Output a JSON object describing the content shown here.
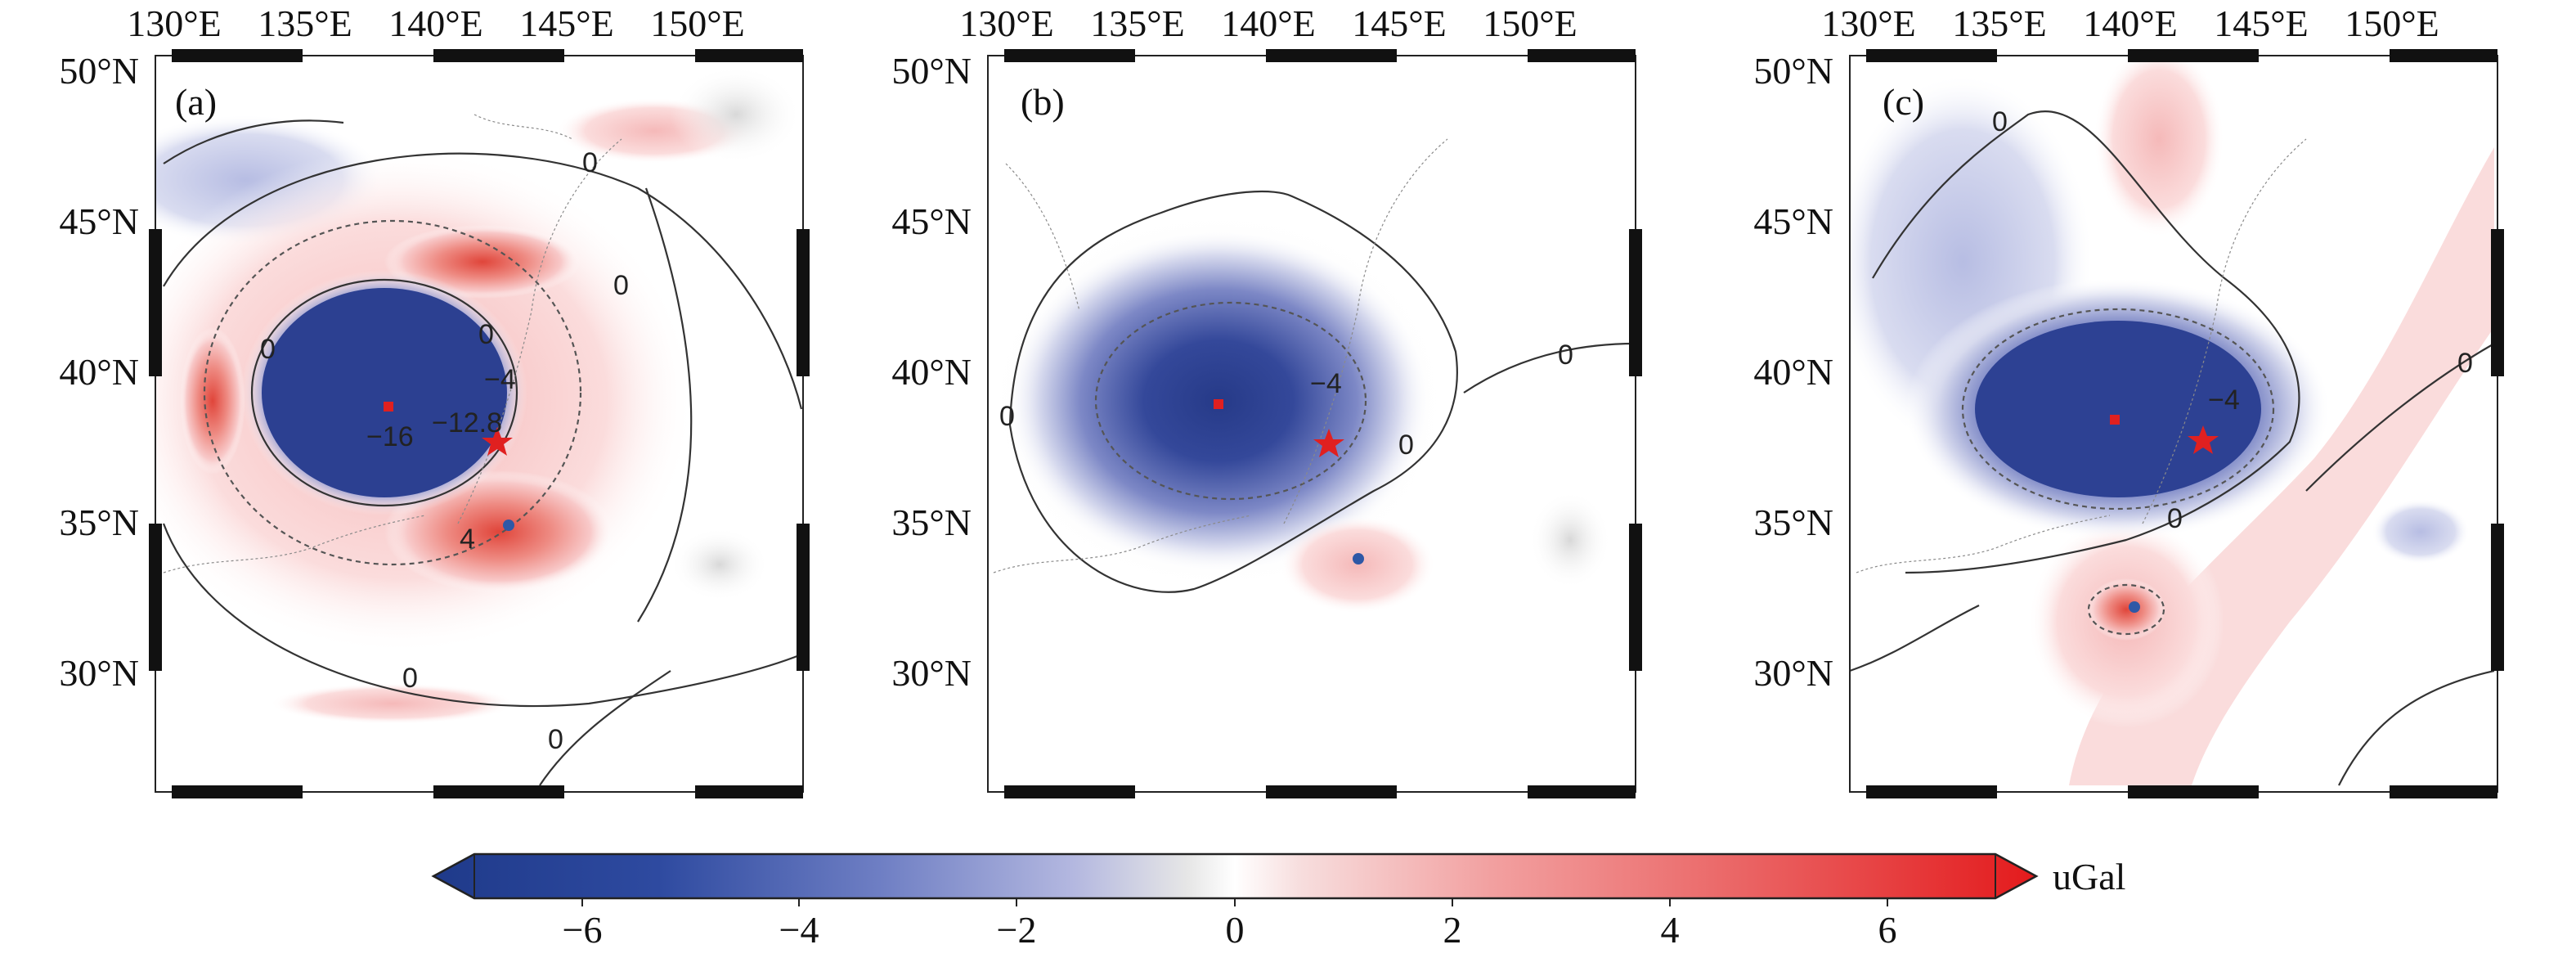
{
  "panels": [
    {
      "label": "(a)",
      "x_ticks": [
        "130°E",
        "135°E",
        "140°E",
        "145°E",
        "150°E"
      ],
      "y_ticks": [
        "50°N",
        "45°N",
        "40°N",
        "35°N",
        "30°N"
      ],
      "contour_labels": [
        "0",
        "0",
        "0",
        "0",
        "0",
        "0",
        "−16",
        "−12.8",
        "−4",
        "4"
      ]
    },
    {
      "label": "(b)",
      "x_ticks": [
        "130°E",
        "135°E",
        "140°E",
        "145°E",
        "150°E"
      ],
      "y_ticks": [
        "50°N",
        "45°N",
        "40°N",
        "35°N",
        "30°N"
      ],
      "contour_labels": [
        "0",
        "0",
        "0",
        "−4"
      ]
    },
    {
      "label": "(c)",
      "x_ticks": [
        "130°E",
        "135°E",
        "140°E",
        "145°E",
        "150°E"
      ],
      "y_ticks": [
        "50°N",
        "45°N",
        "40°N",
        "35°N",
        "30°N"
      ],
      "contour_labels": [
        "0",
        "0",
        "0",
        "−4"
      ]
    }
  ],
  "colorbar": {
    "unit": "uGal",
    "tick_labels": [
      "−6",
      "−4",
      "−2",
      "0",
      "2",
      "4",
      "6"
    ],
    "range": [
      -7,
      7
    ],
    "colors": {
      "deep_negative": "#2b3f8f",
      "negative": "#6f7fc4",
      "near_zero": "#ffffff",
      "positive": "#f2a0a0",
      "deep_positive": "#e31a1c"
    }
  },
  "markers": {
    "red_star_color": "#e02020",
    "red_square_color": "#e02020",
    "blue_dot_color": "#2e58a6"
  }
}
